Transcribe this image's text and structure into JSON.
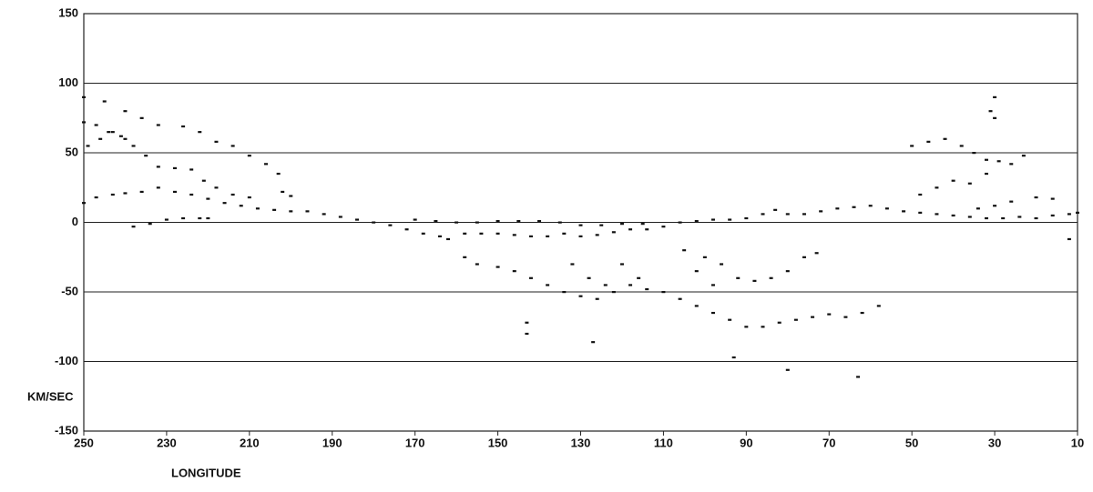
{
  "chart_data": {
    "type": "scatter",
    "x_label": "LONGITUDE",
    "y_label": "KM/SEC",
    "xlim": [
      250,
      10
    ],
    "ylim": [
      -150,
      150
    ],
    "xticks": [
      250,
      230,
      210,
      190,
      170,
      150,
      130,
      110,
      90,
      70,
      50,
      30,
      10
    ],
    "yticks": [
      -150,
      -100,
      -50,
      0,
      50,
      100,
      150
    ],
    "grid": true,
    "color": "#111111",
    "x": [
      250,
      245,
      240,
      236,
      232,
      226,
      222,
      218,
      214,
      210,
      206,
      203,
      202,
      200,
      250,
      247,
      244,
      240,
      238,
      235,
      232,
      228,
      224,
      221,
      218,
      214,
      210,
      249,
      246,
      243,
      241,
      250,
      247,
      243,
      240,
      236,
      232,
      228,
      224,
      220,
      216,
      212,
      208,
      204,
      200,
      196,
      192,
      188,
      184,
      180,
      176,
      172,
      168,
      164,
      162,
      158,
      154,
      150,
      146,
      142,
      138,
      134,
      130,
      126,
      122,
      118,
      114,
      110,
      106,
      102,
      98,
      94,
      90,
      86,
      83,
      80,
      76,
      72,
      68,
      64,
      60,
      56,
      52,
      48,
      44,
      40,
      36,
      32,
      28,
      24,
      20,
      16,
      12,
      10,
      170,
      165,
      160,
      155,
      150,
      145,
      140,
      135,
      130,
      125,
      120,
      115,
      238,
      234,
      230,
      226,
      222,
      220,
      158,
      155,
      150,
      146,
      142,
      138,
      134,
      130,
      126,
      122,
      118,
      114,
      110,
      106,
      102,
      98,
      94,
      90,
      86,
      82,
      78,
      74,
      70,
      66,
      62,
      58,
      132,
      128,
      124,
      120,
      116,
      105,
      100,
      96,
      92,
      88,
      84,
      80,
      76,
      73,
      102,
      98,
      50,
      46,
      42,
      38,
      35,
      32,
      29,
      26,
      23,
      31,
      30,
      30,
      48,
      44,
      40,
      36,
      32,
      34,
      30,
      26,
      20,
      16,
      12,
      143,
      143,
      127,
      93,
      80,
      63
    ],
    "values": [
      90,
      87,
      80,
      75,
      70,
      69,
      65,
      58,
      55,
      48,
      42,
      35,
      22,
      19,
      72,
      70,
      65,
      60,
      55,
      48,
      40,
      39,
      38,
      30,
      25,
      20,
      18,
      55,
      60,
      65,
      62,
      14,
      18,
      20,
      21,
      22,
      25,
      22,
      20,
      17,
      14,
      12,
      10,
      9,
      8,
      8,
      6,
      4,
      2,
      0,
      -2,
      -5,
      -8,
      -10,
      -12,
      -8,
      -8,
      -8,
      -9,
      -10,
      -10,
      -8,
      -10,
      -9,
      -7,
      -5,
      -5,
      -3,
      0,
      1,
      2,
      2,
      3,
      6,
      9,
      6,
      6,
      8,
      10,
      11,
      12,
      10,
      8,
      7,
      6,
      5,
      4,
      3,
      3,
      4,
      3,
      5,
      6,
      7,
      2,
      1,
      0,
      0,
      1,
      1,
      1,
      0,
      -2,
      -2,
      -1,
      -1,
      -3,
      -1,
      2,
      3,
      3,
      3,
      -25,
      -30,
      -32,
      -35,
      -40,
      -45,
      -50,
      -53,
      -55,
      -50,
      -45,
      -48,
      -50,
      -55,
      -60,
      -65,
      -70,
      -75,
      -75,
      -72,
      -70,
      -68,
      -66,
      -68,
      -65,
      -60,
      -30,
      -40,
      -45,
      -30,
      -40,
      -20,
      -25,
      -30,
      -40,
      -42,
      -40,
      -35,
      -25,
      -22,
      -35,
      -45,
      55,
      58,
      60,
      55,
      50,
      45,
      44,
      42,
      48,
      80,
      90,
      75,
      20,
      25,
      30,
      28,
      35,
      10,
      12,
      15,
      18,
      17,
      -12,
      -72,
      -80,
      -86,
      -97,
      -106,
      -111
    ]
  }
}
